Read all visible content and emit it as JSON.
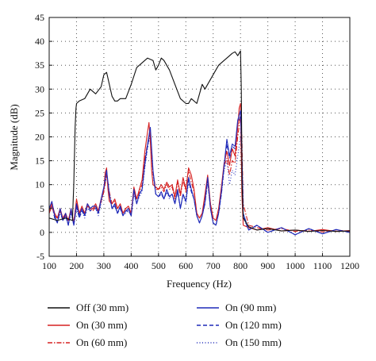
{
  "chart_data": {
    "type": "line",
    "xlabel": "Frequency (Hz)",
    "ylabel": "Magnitude (dB)",
    "xlim": [
      100,
      1200
    ],
    "ylim": [
      -5,
      45
    ],
    "xticks": [
      100,
      200,
      300,
      400,
      500,
      600,
      700,
      800,
      900,
      1000,
      1100,
      1200
    ],
    "yticks": [
      -5,
      0,
      5,
      10,
      15,
      20,
      25,
      30,
      35,
      40,
      45
    ],
    "grid": true,
    "legend_position": "bottom",
    "series": [
      {
        "name": "Off (30 mm)",
        "color": "#111111",
        "style": "solid",
        "x": [
          100,
          130,
          160,
          185,
          190,
          195,
          198,
          200,
          210,
          230,
          250,
          270,
          290,
          300,
          310,
          320,
          330,
          340,
          350,
          360,
          380,
          400,
          420,
          440,
          460,
          480,
          490,
          500,
          510,
          520,
          540,
          560,
          580,
          600,
          610,
          620,
          640,
          650,
          660,
          670,
          680,
          700,
          720,
          740,
          760,
          770,
          780,
          790,
          800,
          803,
          806,
          810,
          830,
          860,
          900,
          950,
          1000,
          1050,
          1100,
          1150,
          1200
        ],
        "y": [
          3,
          2.5,
          3,
          2.5,
          10,
          22,
          26,
          27,
          27.5,
          28,
          30,
          29,
          30.5,
          33,
          33.5,
          31,
          28.5,
          27.5,
          27.5,
          28,
          28,
          31,
          34.5,
          35.5,
          36.5,
          36,
          34,
          35,
          36.5,
          36,
          34,
          31,
          28,
          27,
          27,
          28,
          27,
          29,
          31,
          30,
          31,
          33,
          35,
          36,
          37,
          37.5,
          37.8,
          37,
          38,
          30,
          10,
          3,
          1.2,
          0.5,
          0.8,
          0.3,
          0.5,
          0.2,
          0.4,
          0.2,
          0.3
        ]
      },
      {
        "name": "On (30 mm)",
        "color": "#d62020",
        "style": "solid",
        "x": [
          100,
          110,
          120,
          130,
          140,
          150,
          160,
          170,
          180,
          190,
          200,
          210,
          220,
          230,
          240,
          250,
          260,
          270,
          280,
          290,
          300,
          305,
          310,
          315,
          320,
          330,
          340,
          350,
          360,
          370,
          380,
          390,
          400,
          410,
          420,
          430,
          440,
          450,
          460,
          465,
          470,
          475,
          480,
          490,
          500,
          510,
          520,
          530,
          540,
          550,
          560,
          570,
          580,
          590,
          600,
          610,
          620,
          630,
          640,
          650,
          660,
          670,
          680,
          690,
          700,
          710,
          720,
          730,
          740,
          750,
          760,
          770,
          780,
          790,
          795,
          800,
          805,
          810,
          830,
          860,
          900,
          950,
          1000,
          1050,
          1100,
          1150,
          1200
        ],
        "y": [
          4.5,
          6,
          4,
          3,
          5,
          3,
          4,
          2.5,
          5,
          2,
          7,
          4,
          5.5,
          4,
          6,
          5,
          5,
          6,
          4.5,
          7,
          9,
          12.5,
          13.5,
          9,
          6.5,
          6,
          7,
          5,
          6,
          4,
          5,
          5.5,
          4,
          9.5,
          7,
          9,
          11,
          17,
          21,
          23,
          19,
          13,
          10,
          9.5,
          9,
          10,
          9,
          10.5,
          9.5,
          10,
          7.5,
          11,
          8,
          11.5,
          9,
          13.5,
          12,
          9,
          4,
          3,
          4,
          8,
          12,
          6,
          3,
          2.5,
          5,
          9.5,
          14.5,
          17,
          14,
          17.5,
          16,
          22,
          26,
          27,
          8,
          1.5,
          1,
          0.5,
          1,
          0.3,
          0.5,
          0.2,
          0.6,
          0.2,
          0.4
        ]
      },
      {
        "name": "On (60 mm)",
        "color": "#d62020",
        "style": "dashdot",
        "x": [
          100,
          110,
          120,
          130,
          140,
          150,
          160,
          170,
          180,
          190,
          200,
          210,
          220,
          230,
          240,
          250,
          260,
          270,
          280,
          290,
          300,
          310,
          320,
          330,
          340,
          350,
          360,
          370,
          380,
          390,
          400,
          410,
          420,
          430,
          440,
          450,
          460,
          470,
          480,
          490,
          500,
          510,
          520,
          530,
          540,
          550,
          560,
          570,
          580,
          590,
          600,
          610,
          620,
          630,
          640,
          650,
          660,
          670,
          680,
          690,
          700,
          710,
          720,
          730,
          740,
          750,
          760,
          770,
          780,
          790,
          800,
          805,
          810,
          830,
          860,
          900,
          950,
          1000,
          1050,
          1100,
          1150,
          1200
        ],
        "y": [
          4,
          5.5,
          3.5,
          3,
          4.5,
          3,
          3.5,
          2.5,
          4.5,
          2,
          6.5,
          4,
          5,
          4,
          5.5,
          5,
          4.5,
          5.5,
          4.5,
          6.5,
          8.5,
          12,
          8.5,
          6,
          6.5,
          5,
          5.5,
          4,
          5,
          5,
          4,
          8.5,
          7,
          8.5,
          10,
          15.5,
          18.5,
          21.5,
          12.5,
          9,
          9,
          9.5,
          8.5,
          10,
          9,
          9.5,
          7,
          10.5,
          7.5,
          11,
          8.5,
          13,
          10.5,
          8.5,
          4,
          3,
          4,
          7.5,
          11,
          6,
          3,
          2.5,
          4.5,
          9,
          14,
          15.5,
          12,
          15,
          14.5,
          20,
          24.5,
          20,
          6,
          1.5,
          1,
          0.5,
          0.8,
          0.2,
          0.5,
          0.1,
          0.5,
          0.2
        ]
      },
      {
        "name": "On (90 mm)",
        "color": "#1f2ab8",
        "style": "solid",
        "x": [
          100,
          110,
          120,
          130,
          140,
          150,
          160,
          170,
          180,
          190,
          200,
          210,
          220,
          230,
          240,
          250,
          260,
          270,
          280,
          290,
          300,
          310,
          320,
          330,
          340,
          350,
          360,
          370,
          380,
          390,
          400,
          410,
          420,
          430,
          440,
          450,
          460,
          470,
          480,
          490,
          500,
          510,
          520,
          530,
          540,
          550,
          560,
          570,
          580,
          590,
          600,
          610,
          620,
          630,
          640,
          650,
          660,
          670,
          680,
          690,
          700,
          710,
          720,
          730,
          740,
          750,
          760,
          770,
          780,
          790,
          800,
          805,
          810,
          830,
          860,
          900,
          950,
          1000,
          1050,
          1100,
          1150,
          1200
        ],
        "y": [
          5,
          6.5,
          3.5,
          2,
          5,
          2.5,
          4,
          1.5,
          5,
          1.5,
          6,
          3.5,
          5,
          3.5,
          6,
          5,
          5.5,
          5.5,
          4,
          7,
          9.5,
          13,
          8,
          5,
          6,
          4,
          5.5,
          3.5,
          4.5,
          5,
          3.5,
          9,
          6,
          8,
          9,
          14.5,
          18.5,
          22,
          13,
          8,
          7.5,
          8.5,
          7,
          9,
          7.5,
          8,
          6,
          9,
          5,
          8,
          6.5,
          11.5,
          9,
          7,
          3.5,
          2,
          3.5,
          6.5,
          11.5,
          5,
          2,
          1.5,
          4,
          8.5,
          14,
          19.5,
          16,
          18.5,
          18,
          23.5,
          25.5,
          17,
          4,
          0.5,
          1.5,
          0,
          1,
          -0.5,
          0.8,
          -0.3,
          0.6,
          0
        ]
      },
      {
        "name": "On (120 mm)",
        "color": "#1f2ab8",
        "style": "dashed",
        "x": [
          100,
          110,
          120,
          130,
          140,
          150,
          160,
          170,
          180,
          190,
          200,
          210,
          220,
          230,
          240,
          250,
          260,
          270,
          280,
          290,
          300,
          310,
          320,
          330,
          340,
          350,
          360,
          370,
          380,
          390,
          400,
          410,
          420,
          430,
          440,
          450,
          460,
          470,
          480,
          490,
          500,
          510,
          520,
          530,
          540,
          550,
          560,
          570,
          580,
          590,
          600,
          610,
          620,
          630,
          640,
          650,
          660,
          670,
          680,
          690,
          700,
          710,
          720,
          730,
          740,
          750,
          760,
          770,
          780,
          790,
          800,
          805,
          810,
          830,
          860,
          900,
          950,
          1000,
          1050,
          1100,
          1150,
          1200
        ],
        "y": [
          4.5,
          6,
          3,
          2,
          4.5,
          2.5,
          3.5,
          1.5,
          4.5,
          1.5,
          5.5,
          3,
          4.5,
          3.5,
          5.5,
          4.5,
          5,
          5,
          4,
          6.5,
          9,
          12.5,
          8,
          5,
          5.5,
          4,
          5,
          3.5,
          4.5,
          4.5,
          3.5,
          8.5,
          6,
          8,
          9,
          14,
          18,
          21,
          12.5,
          8,
          7.5,
          8,
          7,
          8.5,
          7.5,
          8,
          6,
          8.5,
          5,
          8,
          6.5,
          11,
          8.5,
          7,
          3.5,
          2,
          3.5,
          6,
          11,
          5,
          2,
          1.5,
          4,
          8,
          13.5,
          18.5,
          15.5,
          18,
          17.5,
          22.5,
          24.5,
          16,
          3.5,
          0.5,
          1.5,
          0,
          1,
          -0.5,
          0.8,
          -0.3,
          0.6,
          0
        ]
      },
      {
        "name": "On (150 mm)",
        "color": "#1f2ab8",
        "style": "dotted",
        "x": [
          100,
          110,
          120,
          130,
          140,
          150,
          160,
          170,
          180,
          190,
          200,
          210,
          220,
          230,
          240,
          250,
          260,
          270,
          280,
          290,
          300,
          310,
          320,
          330,
          340,
          350,
          360,
          370,
          380,
          390,
          400,
          410,
          420,
          430,
          440,
          450,
          460,
          470,
          480,
          490,
          500,
          510,
          520,
          530,
          540,
          550,
          560,
          570,
          580,
          590,
          600,
          610,
          620,
          630,
          640,
          650,
          660,
          670,
          680,
          690,
          700,
          710,
          720,
          730,
          740,
          750,
          760,
          770,
          780,
          790,
          800,
          805,
          810,
          830,
          860,
          900,
          950,
          1000,
          1050,
          1100,
          1150,
          1200
        ],
        "y": [
          4,
          5.5,
          3,
          2,
          4,
          2.5,
          3.5,
          1.5,
          4,
          1.5,
          5,
          3,
          4.5,
          3,
          5,
          4.5,
          5,
          5,
          3.5,
          6,
          8.5,
          12,
          7.5,
          5,
          5.5,
          4,
          5,
          3.5,
          4,
          4.5,
          3.5,
          8,
          6,
          7.5,
          8.5,
          13.5,
          17.5,
          20.5,
          12,
          8,
          7.5,
          8,
          7,
          8.5,
          7,
          8,
          6,
          8.5,
          5,
          8,
          6,
          10.5,
          8.5,
          7,
          3.5,
          2,
          3.5,
          6,
          10.5,
          5,
          2,
          1.5,
          4,
          8,
          13,
          15,
          10,
          13,
          12,
          16,
          20,
          12,
          3,
          0.5,
          1.5,
          0,
          1,
          -0.5,
          0.8,
          -0.3,
          0.6,
          0
        ]
      }
    ]
  }
}
